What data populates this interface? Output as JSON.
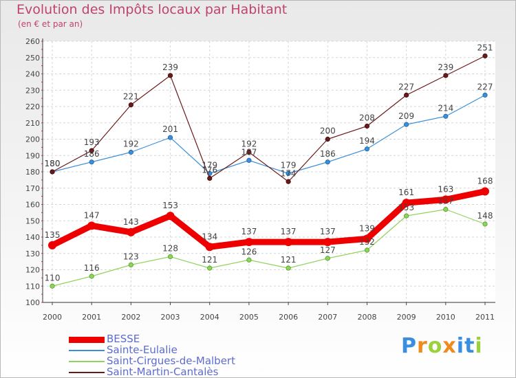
{
  "chart_data": {
    "type": "line",
    "title": "Evolution des Impôts locaux par Habitant",
    "subtitle": "(en € et par an)",
    "categories": [
      "2000",
      "2001",
      "2002",
      "2003",
      "2004",
      "2005",
      "2006",
      "2007",
      "2008",
      "2009",
      "2010",
      "2011"
    ],
    "ylim": [
      100,
      260
    ],
    "yticks": [
      100,
      110,
      120,
      130,
      140,
      150,
      160,
      170,
      180,
      190,
      200,
      210,
      220,
      230,
      240,
      250,
      260
    ],
    "series": [
      {
        "name": "BESSE",
        "color": "#ee0000",
        "values": [
          135,
          147,
          143,
          153,
          134,
          137,
          137,
          137,
          139,
          161,
          163,
          168
        ]
      },
      {
        "name": "Sainte-Eulalie",
        "color": "#3b8fd9",
        "values": [
          180,
          186,
          192,
          201,
          179,
          187,
          179,
          186,
          194,
          209,
          214,
          227
        ]
      },
      {
        "name": "Saint-Cirgues-de-Malbert",
        "color": "#8fd35a",
        "values": [
          110,
          116,
          123,
          128,
          121,
          126,
          121,
          127,
          132,
          153,
          157,
          148
        ]
      },
      {
        "name": "Saint-Martin-Cantalès",
        "color": "#6b1a1a",
        "values": [
          180,
          193,
          221,
          239,
          176,
          192,
          174,
          200,
          208,
          227,
          239,
          251
        ]
      }
    ]
  },
  "logo": {
    "text": "Proxiti",
    "letters": [
      "P",
      "r",
      "o",
      "x",
      "i",
      "t",
      "i"
    ]
  }
}
